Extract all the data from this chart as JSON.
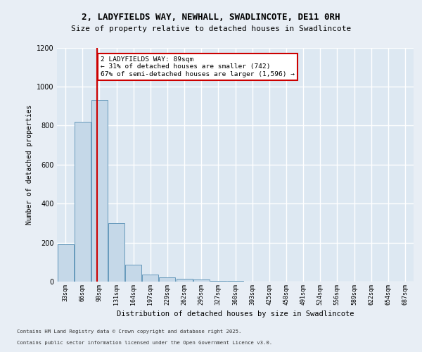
{
  "title_line1": "2, LADYFIELDS WAY, NEWHALL, SWADLINCOTE, DE11 0RH",
  "title_line2": "Size of property relative to detached houses in Swadlincote",
  "xlabel": "Distribution of detached houses by size in Swadlincote",
  "ylabel": "Number of detached properties",
  "categories": [
    "33sqm",
    "66sqm",
    "98sqm",
    "131sqm",
    "164sqm",
    "197sqm",
    "229sqm",
    "262sqm",
    "295sqm",
    "327sqm",
    "360sqm",
    "393sqm",
    "425sqm",
    "458sqm",
    "491sqm",
    "524sqm",
    "556sqm",
    "589sqm",
    "622sqm",
    "654sqm",
    "687sqm"
  ],
  "values": [
    193,
    820,
    930,
    300,
    88,
    35,
    20,
    15,
    10,
    5,
    3,
    0,
    0,
    0,
    0,
    0,
    0,
    0,
    0,
    0,
    0
  ],
  "bar_color": "#c5d8e8",
  "bar_edge_color": "#6699bb",
  "property_label": "2 LADYFIELDS WAY: 89sqm",
  "annotation_line1": "← 31% of detached houses are smaller (742)",
  "annotation_line2": "67% of semi-detached houses are larger (1,596) →",
  "vline_color": "#cc0000",
  "vline_x": 1.87,
  "annotation_box_facecolor": "#ffffff",
  "annotation_box_edgecolor": "#cc0000",
  "ylim": [
    0,
    1200
  ],
  "yticks": [
    0,
    200,
    400,
    600,
    800,
    1000,
    1200
  ],
  "page_bg": "#e8eef5",
  "axes_bg": "#dde8f2",
  "grid_color": "#ffffff",
  "footer_line1": "Contains HM Land Registry data © Crown copyright and database right 2025.",
  "footer_line2": "Contains public sector information licensed under the Open Government Licence v3.0."
}
